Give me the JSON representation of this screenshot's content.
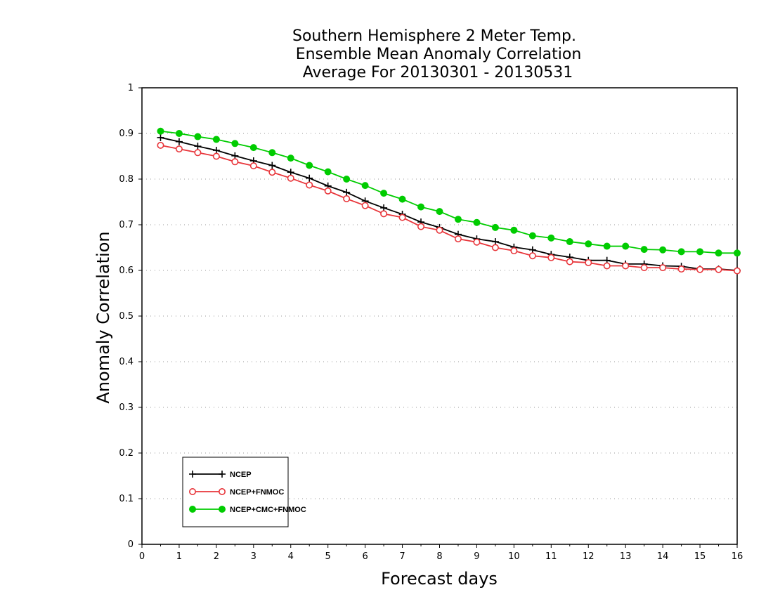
{
  "chart_data": {
    "type": "line",
    "title": [
      "Southern Hemisphere 2 Meter Temp.",
      "Ensemble Mean Anomaly Correlation",
      "Average For 20130301 - 20130531"
    ],
    "xlabel": "Forecast days",
    "ylabel": "Anomaly Correlation",
    "xlim": [
      0,
      16
    ],
    "ylim": [
      0,
      1
    ],
    "xticks": [
      "0",
      "1",
      "2",
      "3",
      "4",
      "5",
      "6",
      "7",
      "8",
      "9",
      "10",
      "11",
      "12",
      "13",
      "14",
      "15",
      "16"
    ],
    "yticks": [
      "0",
      "0.1",
      "0.2",
      "0.3",
      "0.4",
      "0.5",
      "0.6",
      "0.7",
      "0.8",
      "0.9",
      "1"
    ],
    "grid": "horizontal dotted",
    "legend_position": "bottom-left",
    "x": [
      0.5,
      1,
      1.5,
      2,
      2.5,
      3,
      3.5,
      4,
      4.5,
      5,
      5.5,
      6,
      6.5,
      7,
      7.5,
      8,
      8.5,
      9,
      9.5,
      10,
      10.5,
      11,
      11.5,
      12,
      12.5,
      13,
      13.5,
      14,
      14.5,
      15,
      15.5,
      16
    ],
    "series": [
      {
        "name": "NCEP",
        "color": "#000000",
        "marker": "plus",
        "values": [
          0.891,
          0.882,
          0.872,
          0.863,
          0.851,
          0.84,
          0.83,
          0.815,
          0.802,
          0.785,
          0.771,
          0.752,
          0.737,
          0.723,
          0.706,
          0.694,
          0.679,
          0.669,
          0.663,
          0.651,
          0.645,
          0.635,
          0.629,
          0.622,
          0.622,
          0.614,
          0.614,
          0.61,
          0.609,
          0.603,
          0.603,
          0.6
        ]
      },
      {
        "name": "NCEP+FNMOC",
        "color": "#e8353a",
        "marker": "open-circle",
        "values": [
          0.874,
          0.866,
          0.858,
          0.85,
          0.838,
          0.829,
          0.815,
          0.802,
          0.787,
          0.774,
          0.757,
          0.742,
          0.724,
          0.716,
          0.696,
          0.688,
          0.669,
          0.662,
          0.65,
          0.643,
          0.632,
          0.628,
          0.619,
          0.617,
          0.61,
          0.61,
          0.606,
          0.606,
          0.603,
          0.602,
          0.602,
          0.599
        ]
      },
      {
        "name": "NCEP+CMC+FNMOC",
        "color": "#00cc00",
        "marker": "filled-circle",
        "values": [
          0.905,
          0.9,
          0.893,
          0.887,
          0.878,
          0.869,
          0.858,
          0.846,
          0.83,
          0.816,
          0.8,
          0.786,
          0.769,
          0.756,
          0.739,
          0.729,
          0.712,
          0.705,
          0.694,
          0.688,
          0.676,
          0.671,
          0.663,
          0.658,
          0.653,
          0.653,
          0.646,
          0.645,
          0.641,
          0.641,
          0.638,
          0.638
        ]
      }
    ]
  }
}
